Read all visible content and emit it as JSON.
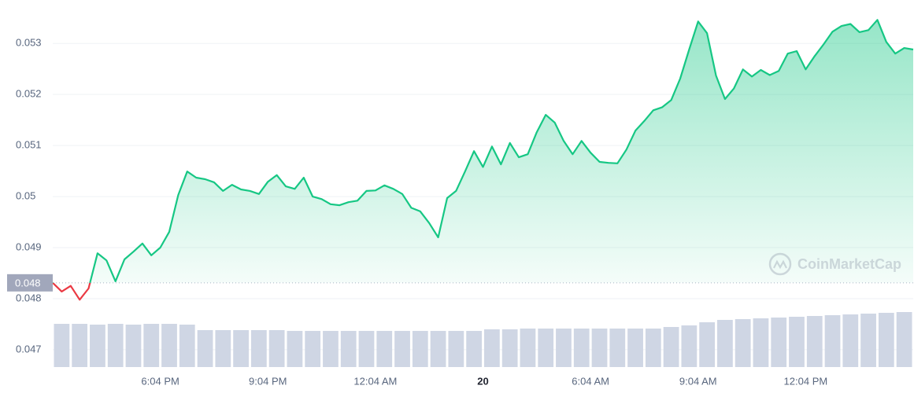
{
  "chart_data": {
    "type": "line",
    "watermark": "CoinMarketCap",
    "xlim": [
      0,
      24
    ],
    "ylim": [
      0.04666,
      0.05385
    ],
    "xticks": [
      {
        "value": 3,
        "label": "6:04 PM"
      },
      {
        "value": 6,
        "label": "9:04 PM"
      },
      {
        "value": 9,
        "label": "12:04 AM"
      },
      {
        "value": 12,
        "label": "20"
      },
      {
        "value": 15,
        "label": "6:04 AM"
      },
      {
        "value": 18,
        "label": "9:04 AM"
      },
      {
        "value": 21,
        "label": "12:04 PM"
      }
    ],
    "yticks": [
      0.047,
      0.048,
      0.049,
      0.05,
      0.051,
      0.052,
      0.053
    ],
    "grid": true,
    "baseline": {
      "value": 0.04831,
      "label": "0.048"
    },
    "up_color": "#16c784",
    "down_color": "#ea3943",
    "x": [
      0,
      0.25,
      0.5,
      0.75,
      1,
      1.25,
      1.5,
      1.75,
      2,
      2.25,
      2.5,
      2.75,
      3,
      3.25,
      3.5,
      3.75,
      4,
      4.25,
      4.5,
      4.75,
      5,
      5.25,
      5.5,
      5.75,
      6,
      6.25,
      6.5,
      6.75,
      7,
      7.25,
      7.5,
      7.75,
      8,
      8.25,
      8.5,
      8.75,
      9,
      9.25,
      9.5,
      9.75,
      10,
      10.25,
      10.5,
      10.75,
      11,
      11.25,
      11.5,
      11.75,
      12,
      12.25,
      12.5,
      12.75,
      13,
      13.25,
      13.5,
      13.75,
      14,
      14.25,
      14.5,
      14.75,
      15,
      15.25,
      15.5,
      15.75,
      16,
      16.25,
      16.5,
      16.75,
      17,
      17.25,
      17.5,
      17.75,
      18,
      18.25,
      18.5,
      18.75,
      19,
      19.25,
      19.5,
      19.75,
      20,
      20.25,
      20.5,
      20.75,
      21,
      21.25,
      21.5,
      21.75,
      22,
      22.25,
      22.5,
      22.75,
      23,
      23.25,
      23.5,
      23.75,
      24
    ],
    "values": [
      0.04831,
      0.04814,
      0.04825,
      0.04798,
      0.0482,
      0.04889,
      0.04875,
      0.04834,
      0.04877,
      0.04892,
      0.04908,
      0.04885,
      0.049,
      0.04931,
      0.05003,
      0.05049,
      0.05037,
      0.05034,
      0.05028,
      0.05011,
      0.05023,
      0.05014,
      0.05011,
      0.05005,
      0.05029,
      0.05042,
      0.0502,
      0.05015,
      0.05037,
      0.05,
      0.04995,
      0.04985,
      0.04983,
      0.04989,
      0.04992,
      0.05011,
      0.05012,
      0.05022,
      0.05015,
      0.05005,
      0.04978,
      0.04971,
      0.04948,
      0.0492,
      0.04997,
      0.05011,
      0.05049,
      0.05089,
      0.05058,
      0.05098,
      0.05063,
      0.05105,
      0.05077,
      0.05083,
      0.05126,
      0.0516,
      0.05145,
      0.05109,
      0.05083,
      0.05109,
      0.05086,
      0.05068,
      0.05066,
      0.05065,
      0.05092,
      0.05129,
      0.05148,
      0.05169,
      0.05175,
      0.05189,
      0.05231,
      0.05288,
      0.05343,
      0.0532,
      0.05237,
      0.05191,
      0.05212,
      0.05249,
      0.05235,
      0.05248,
      0.05238,
      0.05246,
      0.0528,
      0.05285,
      0.05249,
      0.05275,
      0.05298,
      0.05323,
      0.05334,
      0.05338,
      0.05322,
      0.05326,
      0.05346,
      0.05303,
      0.0528,
      0.05291,
      0.05288
    ],
    "volume": {
      "color": "#cfd6e4",
      "ylim": [
        0,
        72
      ],
      "x": [
        0.25,
        0.75,
        1.25,
        1.75,
        2.25,
        2.75,
        3.25,
        3.75,
        4.25,
        4.75,
        5.25,
        5.75,
        6.25,
        6.75,
        7.25,
        7.75,
        8.25,
        8.75,
        9.25,
        9.75,
        10.25,
        10.75,
        11.25,
        11.75,
        12.25,
        12.75,
        13.25,
        13.75,
        14.25,
        14.75,
        15.25,
        15.75,
        16.25,
        16.75,
        17.25,
        17.75,
        18.25,
        18.75,
        19.25,
        19.75,
        20.25,
        20.75,
        21.25,
        21.75,
        22.25,
        22.75,
        23.25,
        23.75
      ],
      "values": [
        55,
        55,
        54,
        55,
        54,
        55,
        55,
        54,
        47,
        47,
        47,
        47,
        47,
        46,
        46,
        46,
        46,
        46,
        46,
        46,
        46,
        46,
        46,
        46,
        48,
        48,
        49,
        49,
        49,
        49,
        49,
        49,
        49,
        49,
        51,
        53,
        57,
        60,
        61,
        62,
        63,
        64,
        65,
        66,
        67,
        68,
        69,
        70
      ]
    }
  }
}
